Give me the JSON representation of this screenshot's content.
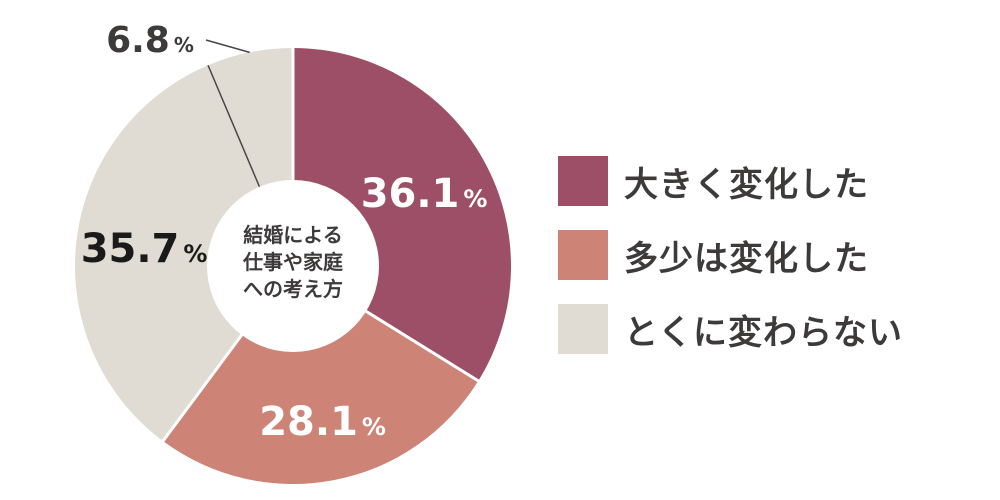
{
  "chart_data": {
    "type": "pie",
    "donut": true,
    "center_label": [
      "結婚による",
      "仕事や家庭",
      "への考え方"
    ],
    "unit": "%",
    "categories": [
      "大きく変化した",
      "多少は変化した",
      "とくに変わらない",
      ""
    ],
    "values": [
      36.1,
      28.1,
      35.7,
      6.8
    ],
    "value_labels": [
      "36.1",
      "28.1",
      "35.7",
      "6.8"
    ],
    "colors": [
      "#9c4f67",
      "#cd8476",
      "#e0dcd3",
      "#e0dcd3"
    ],
    "label_colors": [
      "#ffffff",
      "#ffffff",
      "#1a1a1a",
      "#3d3a3a"
    ],
    "legend_position": "right"
  }
}
